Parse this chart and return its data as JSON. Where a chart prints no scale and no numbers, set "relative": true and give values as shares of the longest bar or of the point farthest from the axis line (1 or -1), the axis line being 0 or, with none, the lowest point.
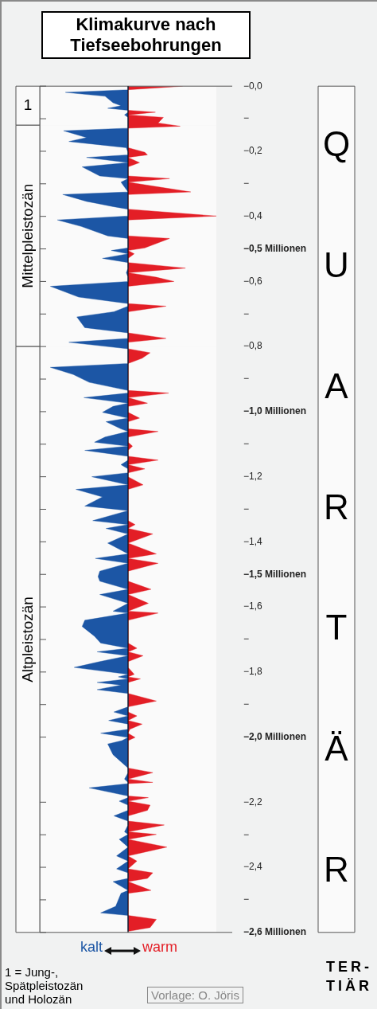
{
  "chart_data": {
    "type": "area",
    "title": "Klimakurve nach Tiefseebohrungen",
    "orientation": "horizontal",
    "relative": true,
    "marker": "none",
    "grid": false,
    "legend": "bottom",
    "x": [
      0,
      -0.011,
      -0.019,
      -0.031,
      -0.051,
      -0.06,
      -0.068,
      -0.074,
      -0.08,
      -0.088,
      -0.096,
      -0.113,
      -0.123,
      -0.129,
      -0.137,
      -0.158,
      -0.17,
      -0.189,
      -0.203,
      -0.211,
      -0.219,
      -0.235,
      -0.248,
      -0.276,
      -0.284,
      -0.295,
      -0.325,
      -0.333,
      -0.354,
      -0.37,
      -0.378,
      -0.399,
      -0.411,
      -0.431,
      -0.46,
      -0.468,
      -0.497,
      -0.505,
      -0.515,
      -0.529,
      -0.542,
      -0.559,
      -0.573,
      -0.587,
      -0.6,
      -0.615,
      -0.648,
      -0.668,
      -0.676,
      -0.693,
      -0.709,
      -0.742,
      -0.758,
      -0.775,
      -0.787,
      -0.807,
      -0.819,
      -0.836,
      -0.852,
      -0.864,
      -0.886,
      -0.91,
      -0.935,
      -0.943,
      -0.957,
      -0.974,
      -0.984,
      -1.002,
      -1.02,
      -1.031,
      -1.053,
      -1.061,
      -1.078,
      -1.094,
      -1.106,
      -1.119,
      -1.137,
      -1.149,
      -1.163,
      -1.176,
      -1.188,
      -1.2,
      -1.225,
      -1.239,
      -1.262,
      -1.29,
      -1.304,
      -1.335,
      -1.347,
      -1.359,
      -1.376,
      -1.404,
      -1.437,
      -1.451,
      -1.466,
      -1.49,
      -1.507,
      -1.521,
      -1.546,
      -1.562,
      -1.589,
      -1.613,
      -1.619,
      -1.641,
      -1.66,
      -1.69,
      -1.711,
      -1.727,
      -1.738,
      -1.75,
      -1.768,
      -1.786,
      -1.807,
      -1.815,
      -1.821,
      -1.832,
      -1.84,
      -1.854,
      -1.866,
      -1.889,
      -1.907,
      -1.923,
      -1.935,
      -1.949,
      -1.96,
      -1.976,
      -1.988,
      -2.001,
      -2.011,
      -2.021,
      -2.054,
      -2.095,
      -2.109,
      -2.129,
      -2.139,
      -2.143,
      -2.156,
      -2.181,
      -2.186,
      -2.197,
      -2.209,
      -2.225,
      -2.242,
      -2.258,
      -2.27,
      -2.291,
      -2.299,
      -2.314,
      -2.338,
      -2.365,
      -2.381,
      -2.405,
      -2.417,
      -2.434,
      -2.444,
      -2.471,
      -2.48,
      -2.52,
      -2.54,
      -2.548,
      -2.56,
      -2.585,
      -2.597
    ],
    "series": [
      {
        "name": "kalt",
        "color": "#1c56a5",
        "values": [
          0,
          0,
          -0.71,
          -0.26,
          -0.17,
          -0.08,
          -0.23,
          0,
          0,
          -0.04,
          0,
          0,
          0,
          0,
          -0.73,
          -0.47,
          -0.67,
          -0.02,
          0,
          0,
          -0.47,
          0,
          -0.52,
          -0.32,
          0,
          -0.08,
          0,
          -0.74,
          -0.47,
          -0.17,
          0,
          0,
          -0.8,
          -0.53,
          -0.23,
          0,
          0,
          -0.19,
          0,
          -0.29,
          0,
          0,
          -0.02,
          0,
          0,
          -0.88,
          -0.56,
          0,
          0,
          -0.16,
          -0.58,
          -0.49,
          0,
          0,
          -0.67,
          0,
          0,
          0,
          0,
          -0.88,
          -0.62,
          -0.44,
          0,
          0,
          -0.5,
          0,
          -0.17,
          -0.29,
          0,
          -0.25,
          -0.08,
          0,
          -0.26,
          -0.38,
          0,
          -0.49,
          0,
          0,
          -0.08,
          0,
          0,
          -0.41,
          0,
          -0.59,
          -0.29,
          -0.49,
          0,
          -0.4,
          0,
          -0.25,
          0,
          -0.23,
          0,
          -0.37,
          0,
          -0.32,
          -0.34,
          -0.32,
          0,
          -0.32,
          0,
          -0.17,
          0,
          -0.49,
          -0.52,
          -0.38,
          -0.31,
          0,
          -0.35,
          0,
          -0.32,
          -0.61,
          0,
          -0.11,
          0,
          -0.35,
          -0.08,
          -0.35,
          0,
          0,
          0,
          -0.16,
          0,
          -0.22,
          0,
          0,
          -0.31,
          0,
          -0.07,
          -0.23,
          -0.17,
          0,
          0,
          -0.04,
          0,
          0,
          -0.44,
          0,
          0,
          -0.1,
          0,
          0,
          -0.16,
          0,
          0,
          -0.04,
          0,
          -0.1,
          0,
          -0.13,
          0,
          -0.13,
          0,
          0,
          -0.17,
          0,
          -0.08,
          -0.14,
          -0.31,
          0,
          0,
          0,
          0
        ]
      },
      {
        "name": "warm",
        "color": "#e31e26",
        "values": [
          0.62,
          0,
          0,
          0,
          0,
          0,
          0,
          0,
          0.31,
          0,
          0.4,
          0.34,
          0.59,
          0,
          0,
          0,
          0,
          0,
          0.19,
          0.22,
          0,
          0.13,
          0,
          0,
          0.47,
          0,
          0.71,
          0,
          0,
          0,
          0,
          1,
          0,
          0,
          0,
          0.47,
          0.19,
          0,
          0.07,
          0,
          0,
          0.65,
          0,
          0.32,
          0.52,
          0,
          0,
          0,
          0.43,
          0,
          0,
          0,
          0,
          0.43,
          0,
          0,
          0.25,
          0.16,
          0,
          0,
          0,
          0,
          0,
          0.46,
          0,
          0.22,
          0,
          0,
          0.13,
          0,
          0,
          0.34,
          0,
          0,
          0.05,
          0,
          0,
          0.34,
          0,
          0.19,
          0,
          0,
          0.17,
          0,
          0,
          0,
          0,
          0,
          0.08,
          0,
          0.28,
          0,
          0.32,
          0,
          0.34,
          0,
          0,
          0,
          0.26,
          0,
          0.23,
          0,
          0.34,
          0,
          0,
          0,
          0,
          0.1,
          0,
          0.17,
          0,
          0,
          0.07,
          0,
          0.14,
          0,
          0,
          0,
          0,
          0.32,
          0,
          0,
          0.1,
          0,
          0.16,
          0.02,
          0,
          0.08,
          0,
          0,
          0,
          0,
          0.28,
          0,
          0.28,
          0,
          0,
          0,
          0.23,
          0,
          0.25,
          0.22,
          0,
          0,
          0.41,
          0,
          0.32,
          0,
          0.44,
          0,
          0.1,
          0,
          0.28,
          0.22,
          0,
          0.26,
          0,
          0,
          0,
          0,
          0.32,
          0.25,
          0
        ]
      }
    ],
    "ylim": [
      -2.6,
      0
    ],
    "yticks": [
      {
        "value": 0,
        "label": "−0,0"
      },
      {
        "value": -0.1,
        "label": "−"
      },
      {
        "value": -0.2,
        "label": "−0,2"
      },
      {
        "value": -0.3,
        "label": "−"
      },
      {
        "value": -0.4,
        "label": "−0,4"
      },
      {
        "value": -0.5,
        "label": "−0,5 Millionen"
      },
      {
        "value": -0.6,
        "label": "−0,6"
      },
      {
        "value": -0.7,
        "label": "−"
      },
      {
        "value": -0.8,
        "label": "−0,8"
      },
      {
        "value": -0.9,
        "label": "−"
      },
      {
        "value": -1,
        "label": "−1,0 Millionen"
      },
      {
        "value": -1.1,
        "label": "−"
      },
      {
        "value": -1.2,
        "label": "−1,2"
      },
      {
        "value": -1.3,
        "label": "−"
      },
      {
        "value": -1.4,
        "label": "−1,4"
      },
      {
        "value": -1.5,
        "label": "−1,5 Millionen"
      },
      {
        "value": -1.6,
        "label": "−1,6"
      },
      {
        "value": -1.7,
        "label": "−"
      },
      {
        "value": -1.8,
        "label": "−1,8"
      },
      {
        "value": -1.9,
        "label": "−"
      },
      {
        "value": -2,
        "label": "−2,0 Millionen"
      },
      {
        "value": -2.2,
        "label": "−2,2"
      },
      {
        "value": -2.3,
        "label": "−"
      },
      {
        "value": -2.4,
        "label": "−2,4"
      },
      {
        "value": -2.5,
        "label": "−"
      },
      {
        "value": -2.6,
        "label": "−2,6 Millionen"
      }
    ],
    "bands": [
      {
        "axis": "y",
        "from": 0,
        "to": -0.12,
        "label": "1"
      },
      {
        "axis": "y",
        "from": -0.12,
        "to": -0.8,
        "label": "Mittelpleistozän"
      },
      {
        "axis": "y",
        "from": -0.8,
        "to": -2.6,
        "label": "Altpleistozän"
      },
      {
        "axis": "y",
        "from": 0,
        "to": -2.6,
        "label": "QUARTÄR"
      }
    ],
    "annotations": [
      "1 = Jung-, Spätpleistozän und Holozän",
      "Vorlage: O. Jöris",
      "TER-\nTIÄR"
    ]
  }
}
